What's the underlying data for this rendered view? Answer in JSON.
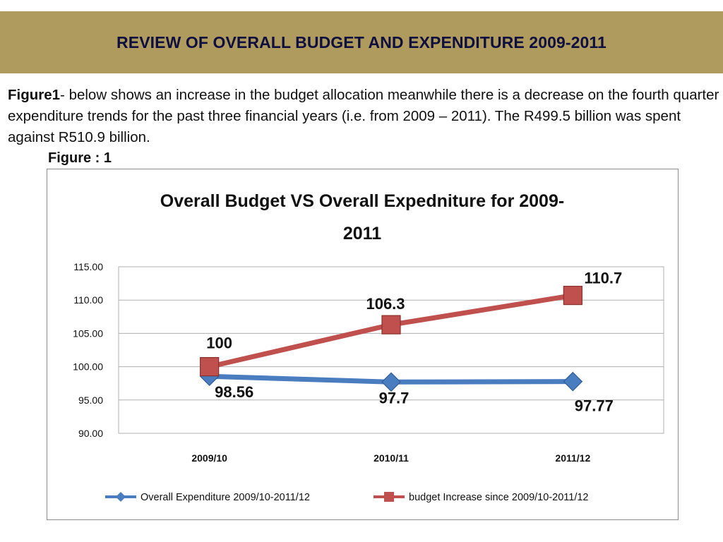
{
  "header": {
    "title": "REVIEW OF OVERALL BUDGET AND EXPENDITURE  2009-2011"
  },
  "intro": {
    "lead": "Figure1",
    "text": "- below shows an increase in the budget allocation meanwhile there is a decrease on the fourth quarter expenditure trends for the past three financial years (i.e. from 2009 – 2011). The R499.5 billion was spent against R510.9 billion."
  },
  "figure_label": "Figure : 1",
  "chart_data": {
    "type": "line",
    "title_line1": "Overall Budget VS Overall Expedniture for 2009-",
    "title_line2": "2011",
    "categories": [
      "2009/10",
      "2010/11",
      "2011/12"
    ],
    "y_ticks": [
      "115.00",
      "110.00",
      "105.00",
      "100.00",
      "95.00",
      "90.00"
    ],
    "ylim": [
      90,
      115
    ],
    "grid": true,
    "legend_position": "bottom",
    "series": [
      {
        "name": "Overall Expenditure 2009/10-2011/12",
        "values": [
          98.56,
          97.7,
          97.77
        ],
        "labels": [
          "98.56",
          "97.7",
          "97.77"
        ],
        "color": "#4a7cc0",
        "marker": "diamond"
      },
      {
        "name": "budget Increase since 2009/10-2011/12",
        "values": [
          100,
          106.3,
          110.7
        ],
        "labels": [
          "100",
          "106.3",
          "110.7"
        ],
        "color": "#c0504d",
        "marker": "square"
      }
    ]
  }
}
